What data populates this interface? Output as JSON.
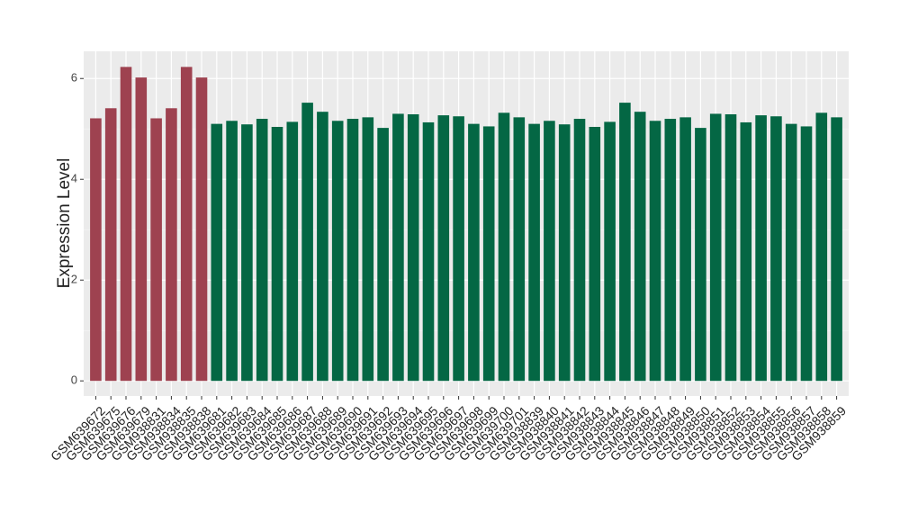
{
  "chart_data": {
    "type": "bar",
    "y_label": "Expression Level",
    "categories": [
      "GSM639672",
      "GSM639675",
      "GSM639676",
      "GSM639679",
      "GSM938831",
      "GSM938834",
      "GSM938835",
      "GSM938838",
      "GSM639681",
      "GSM639682",
      "GSM639683",
      "GSM639684",
      "GSM639685",
      "GSM639686",
      "GSM639687",
      "GSM639688",
      "GSM639689",
      "GSM639690",
      "GSM639691",
      "GSM639692",
      "GSM639693",
      "GSM639694",
      "GSM639695",
      "GSM639696",
      "GSM639697",
      "GSM639698",
      "GSM639699",
      "GSM639700",
      "GSM639701",
      "GSM938839",
      "GSM938840",
      "GSM938841",
      "GSM938842",
      "GSM938843",
      "GSM938844",
      "GSM938845",
      "GSM938846",
      "GSM938847",
      "GSM938848",
      "GSM938849",
      "GSM938850",
      "GSM938851",
      "GSM938852",
      "GSM938853",
      "GSM938854",
      "GSM938855",
      "GSM938856",
      "GSM938857",
      "GSM938858",
      "GSM938859"
    ],
    "values": [
      5.21,
      5.41,
      6.23,
      6.02,
      5.21,
      5.41,
      6.23,
      6.02,
      5.1,
      5.16,
      5.09,
      5.2,
      5.04,
      5.14,
      5.52,
      5.34,
      5.16,
      5.2,
      5.23,
      5.02,
      5.3,
      5.29,
      5.13,
      5.27,
      5.25,
      5.1,
      5.05,
      5.32,
      5.23,
      5.1,
      5.16,
      5.09,
      5.2,
      5.04,
      5.14,
      5.52,
      5.34,
      5.16,
      5.2,
      5.23,
      5.02,
      5.3,
      5.29,
      5.13,
      5.27,
      5.25,
      5.1,
      5.05,
      5.32,
      5.23
    ],
    "colors": [
      "#9e4250",
      "#9e4250",
      "#9e4250",
      "#9e4250",
      "#9e4250",
      "#9e4250",
      "#9e4250",
      "#9e4250",
      "#046744",
      "#046744",
      "#046744",
      "#046744",
      "#046744",
      "#046744",
      "#046744",
      "#046744",
      "#046744",
      "#046744",
      "#046744",
      "#046744",
      "#046744",
      "#046744",
      "#046744",
      "#046744",
      "#046744",
      "#046744",
      "#046744",
      "#046744",
      "#046744",
      "#046744",
      "#046744",
      "#046744",
      "#046744",
      "#046744",
      "#046744",
      "#046744",
      "#046744",
      "#046744",
      "#046744",
      "#046744",
      "#046744",
      "#046744",
      "#046744",
      "#046744",
      "#046744",
      "#046744",
      "#046744",
      "#046744",
      "#046744",
      "#046744"
    ],
    "ylim": [
      -0.3,
      6.54
    ],
    "yticks": [
      0,
      2,
      4,
      6
    ],
    "grid": true
  }
}
